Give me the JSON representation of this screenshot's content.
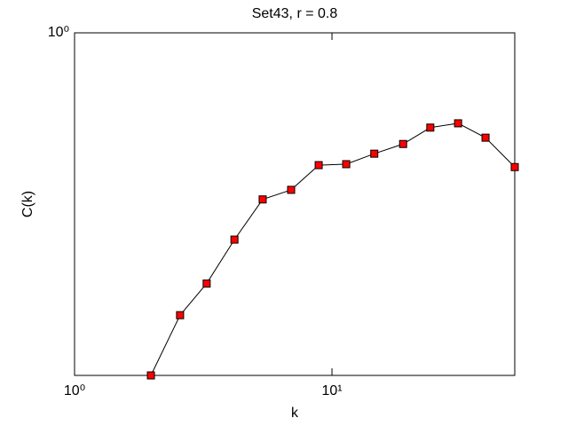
{
  "chart_data": {
    "type": "line",
    "title": "Set43, r = 0.8",
    "x_label": "k",
    "y_label": "C(k)",
    "x": [
      1.98,
      2.57,
      3.26,
      4.18,
      5.38,
      6.94,
      8.88,
      11.36,
      14.6,
      18.9,
      24.1,
      30.9,
      39.5,
      51.3
    ],
    "series": [
      {
        "color": "#ff0000",
        "values": [
          0.345,
          0.416,
          0.459,
          0.526,
          0.596,
          0.614,
          0.663,
          0.665,
          0.687,
          0.708,
          0.745,
          0.755,
          0.722,
          0.659
        ]
      }
    ],
    "xscale": "log",
    "yscale": "log",
    "xlim": [
      1,
      51.3
    ],
    "ylim": [
      0.345,
      1
    ],
    "xticks": [
      {
        "value": 1,
        "label": "10⁰"
      },
      {
        "value": 10,
        "label": "10¹"
      }
    ],
    "yticks": [
      {
        "value": 1,
        "label": "10⁰"
      }
    ]
  }
}
